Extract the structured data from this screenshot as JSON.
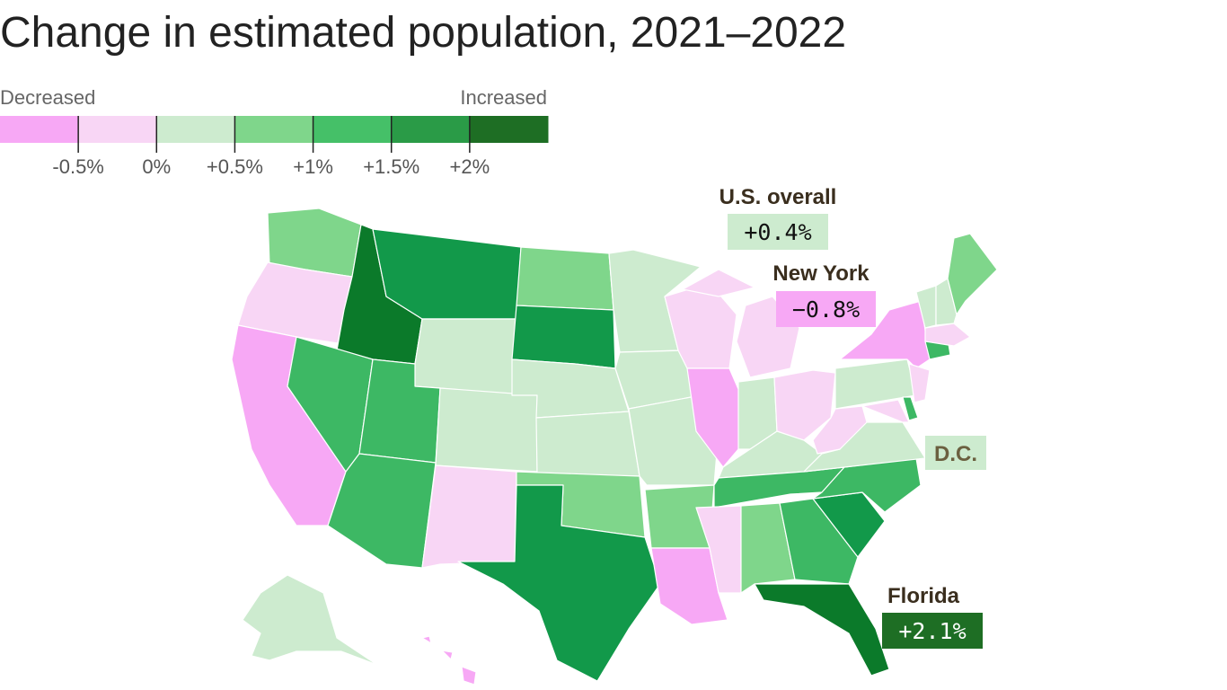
{
  "title": "Change in estimated population, 2021–2022",
  "legend": {
    "low_label": "Decreased",
    "high_label": "Increased",
    "colors": [
      "#f7a8f5",
      "#f8d6f5",
      "#cdebcf",
      "#7fd68b",
      "#45c068",
      "#2a9b47",
      "#1e6e24"
    ],
    "ticks": [
      {
        "value": -0.5,
        "label": "-0.5%"
      },
      {
        "value": 0,
        "label": "0%"
      },
      {
        "value": 0.5,
        "label": "+0.5%"
      },
      {
        "value": 1,
        "label": "+1%"
      },
      {
        "value": 1.5,
        "label": "+1.5%"
      },
      {
        "value": 2,
        "label": "+2%"
      }
    ]
  },
  "callouts": [
    {
      "label": "U.S. overall",
      "value": 0.4,
      "value_label": "+0.4%",
      "color": "#cdebcf"
    },
    {
      "label": "New York",
      "value": -0.8,
      "value_label": "−0.8%",
      "color": "#f7a8f5"
    },
    {
      "label": "D.C.",
      "color": "#cdebcf"
    },
    {
      "label": "Florida",
      "value": 2.1,
      "value_label": "+2.1%",
      "color": "#1e6e24"
    }
  ]
}
